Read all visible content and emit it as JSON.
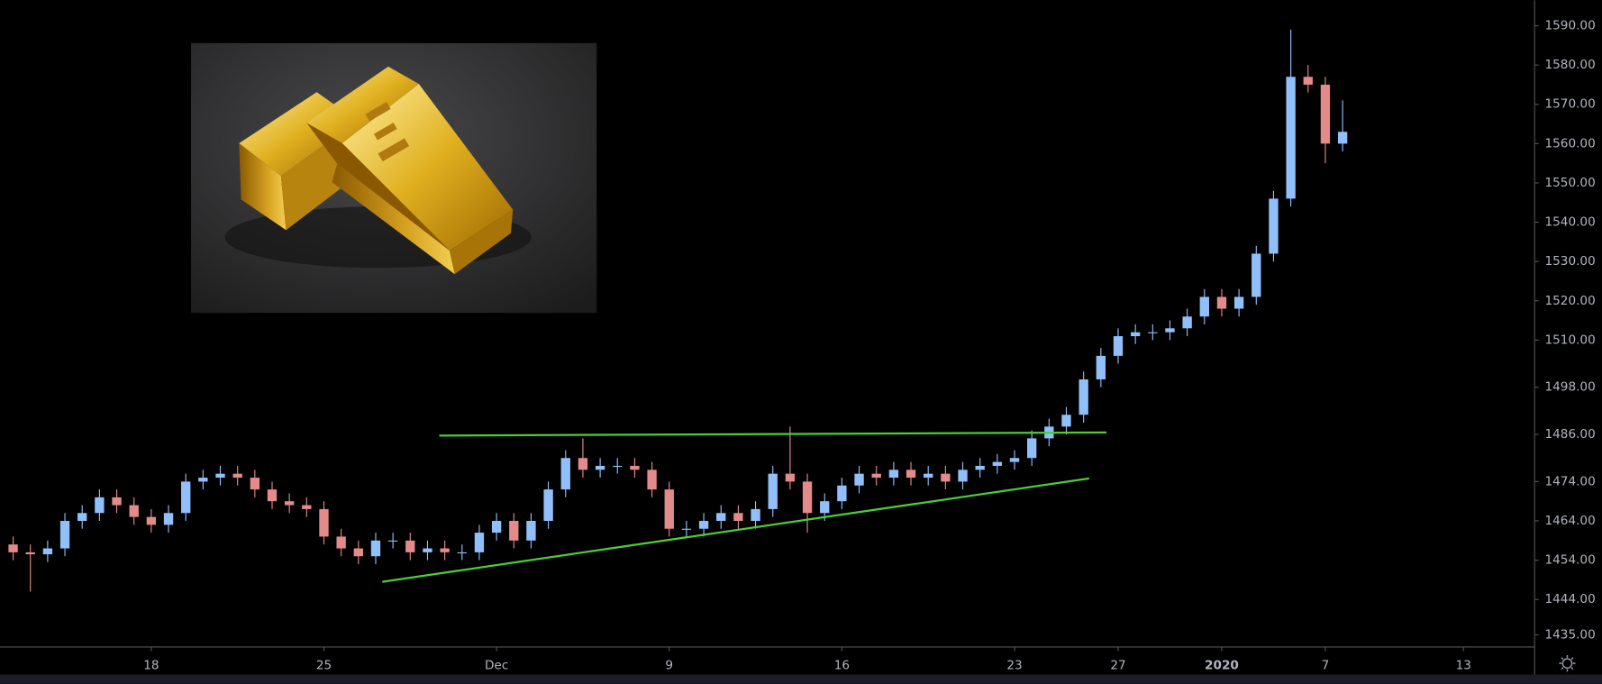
{
  "chart_data": {
    "type": "candlestick",
    "x": [
      -4,
      -3.5,
      -3,
      -2.5,
      -2,
      -1.5,
      -1,
      -0.5,
      0,
      0.5,
      1,
      1.5,
      2,
      2.5,
      3,
      3.5,
      4,
      4.5,
      5,
      5.5,
      6,
      6.5,
      7,
      7.5,
      8,
      8.5,
      9,
      9.5,
      10,
      10.5,
      11,
      11.5,
      12,
      12.5,
      13,
      13.5,
      14,
      14.5,
      15,
      15.5,
      16,
      16.5,
      17,
      17.5,
      18,
      18.5,
      19,
      19.5,
      20,
      20.5,
      21,
      21.5,
      22,
      22.5,
      23,
      23.5,
      24,
      24.5,
      25,
      25.5,
      26,
      26.5,
      27,
      27.5,
      28,
      28.5,
      29,
      29.5,
      30,
      30.5,
      31,
      31.5,
      32,
      32.5,
      33,
      33.5,
      34,
      34.5
    ],
    "open": [
      1458,
      1456,
      1455.5,
      1457,
      1464,
      1466,
      1470,
      1468,
      1465,
      1463,
      1466,
      1474,
      1475,
      1476,
      1475,
      1472,
      1469,
      1468,
      1467,
      1460,
      1457,
      1455,
      1459,
      1459,
      1456,
      1457,
      1456,
      1456,
      1461,
      1464,
      1459,
      1464,
      1472,
      1480,
      1477,
      1478,
      1478,
      1477,
      1472,
      1462,
      1462,
      1464,
      1466,
      1464,
      1467,
      1476,
      1474,
      1466,
      1469,
      1473,
      1476,
      1475,
      1477,
      1475,
      1476,
      1474,
      1477,
      1478,
      1479,
      1480,
      1485,
      1488,
      1491,
      1500,
      1506,
      1511,
      1512,
      1512,
      1513,
      1516,
      1521,
      1518,
      1521,
      1532,
      1546,
      1577,
      1575,
      1560
    ],
    "high": [
      1460,
      1458,
      1459,
      1466,
      1468,
      1472,
      1472,
      1470,
      1467,
      1468,
      1476,
      1477,
      1478,
      1478,
      1477,
      1474,
      1471,
      1470,
      1469,
      1462,
      1459,
      1461,
      1461,
      1461,
      1459,
      1459,
      1458,
      1463,
      1466,
      1466,
      1466,
      1474,
      1482,
      1485,
      1480,
      1480,
      1480,
      1479,
      1474,
      1464,
      1466,
      1468,
      1468,
      1469,
      1478,
      1488,
      1476,
      1471,
      1475,
      1478,
      1478,
      1479,
      1479,
      1478,
      1478,
      1479,
      1480,
      1481,
      1482,
      1487,
      1490,
      1493,
      1502,
      1508,
      1513,
      1514,
      1514,
      1515,
      1518,
      1523,
      1523,
      1523,
      1534,
      1548,
      1589,
      1580,
      1577,
      1571
    ],
    "low": [
      1454,
      1446,
      1453.5,
      1455,
      1462,
      1464,
      1466,
      1463,
      1461,
      1461,
      1464,
      1472,
      1473,
      1473,
      1470,
      1467,
      1466,
      1465,
      1458,
      1455,
      1453,
      1453,
      1457,
      1454,
      1454,
      1454,
      1454,
      1454,
      1459,
      1457,
      1457,
      1462,
      1470,
      1475,
      1475,
      1476,
      1475,
      1470,
      1460,
      1460,
      1460,
      1462,
      1462,
      1462,
      1465,
      1472,
      1461,
      1464,
      1467,
      1471,
      1473,
      1473,
      1473,
      1473,
      1472,
      1472,
      1475,
      1476,
      1477,
      1478,
      1483,
      1486,
      1489,
      1498,
      1504,
      1509,
      1510,
      1510,
      1511,
      1514,
      1516,
      1516,
      1519,
      1530,
      1544,
      1573,
      1555,
      1558
    ],
    "close": [
      1456,
      1455.5,
      1457,
      1464,
      1466,
      1470,
      1468,
      1465,
      1463,
      1466,
      1474,
      1475,
      1476,
      1475,
      1472,
      1469,
      1468,
      1467,
      1460,
      1457,
      1455,
      1459,
      1459,
      1456,
      1457,
      1456,
      1456,
      1461,
      1464,
      1459,
      1464,
      1472,
      1480,
      1477,
      1478,
      1478,
      1477,
      1472,
      1462,
      1462,
      1464,
      1466,
      1464,
      1467,
      1476,
      1474,
      1466,
      1469,
      1473,
      1476,
      1475,
      1477,
      1475,
      1476,
      1474,
      1477,
      1478,
      1479,
      1480,
      1485,
      1488,
      1491,
      1500,
      1506,
      1511,
      1512,
      1512,
      1513,
      1516,
      1521,
      1518,
      1521,
      1532,
      1546,
      1577,
      1575,
      1560,
      1563
    ],
    "up_color": "#90bff9",
    "down_color": "#e38a8a",
    "trendlines": [
      {
        "x": [
          8.34,
          27.66
        ],
        "y": [
          1485.7,
          1486.5
        ],
        "color": "#4ccd35"
      },
      {
        "x": [
          6.69,
          27.16
        ],
        "y": [
          1448.5,
          1474.8
        ],
        "color": "#4ccd35"
      }
    ],
    "xlim": [
      -4.38,
      40
    ],
    "xticks": [
      {
        "value": 0,
        "label": "18"
      },
      {
        "value": 5,
        "label": "25"
      },
      {
        "value": 10,
        "label": "Dec"
      },
      {
        "value": 15,
        "label": "9"
      },
      {
        "value": 20,
        "label": "16"
      },
      {
        "value": 25,
        "label": "23"
      },
      {
        "value": 28,
        "label": "27"
      },
      {
        "value": 31,
        "label": "2020"
      },
      {
        "value": 34,
        "label": "7"
      },
      {
        "value": 38,
        "label": "13"
      }
    ],
    "ylim": [
      1431.9,
      1596.5
    ],
    "yticks": [
      {
        "value": 1590,
        "label": "1590.00"
      },
      {
        "value": 1580,
        "label": "1580.00"
      },
      {
        "value": 1570,
        "label": "1570.00"
      },
      {
        "value": 1560,
        "label": "1560.00"
      },
      {
        "value": 1550,
        "label": "1550.00"
      },
      {
        "value": 1540,
        "label": "1540.00"
      },
      {
        "value": 1530,
        "label": "1530.00"
      },
      {
        "value": 1520,
        "label": "1520.00"
      },
      {
        "value": 1510,
        "label": "1510.00"
      },
      {
        "value": 1498,
        "label": "1498.00"
      },
      {
        "value": 1486,
        "label": "1486.00"
      },
      {
        "value": 1474,
        "label": "1474.00"
      },
      {
        "value": 1464,
        "label": "1464.00"
      },
      {
        "value": 1454,
        "label": "1454.00"
      },
      {
        "value": 1444,
        "label": "1444.00"
      },
      {
        "value": 1435,
        "label": "1435.00"
      }
    ],
    "grid": false
  }
}
